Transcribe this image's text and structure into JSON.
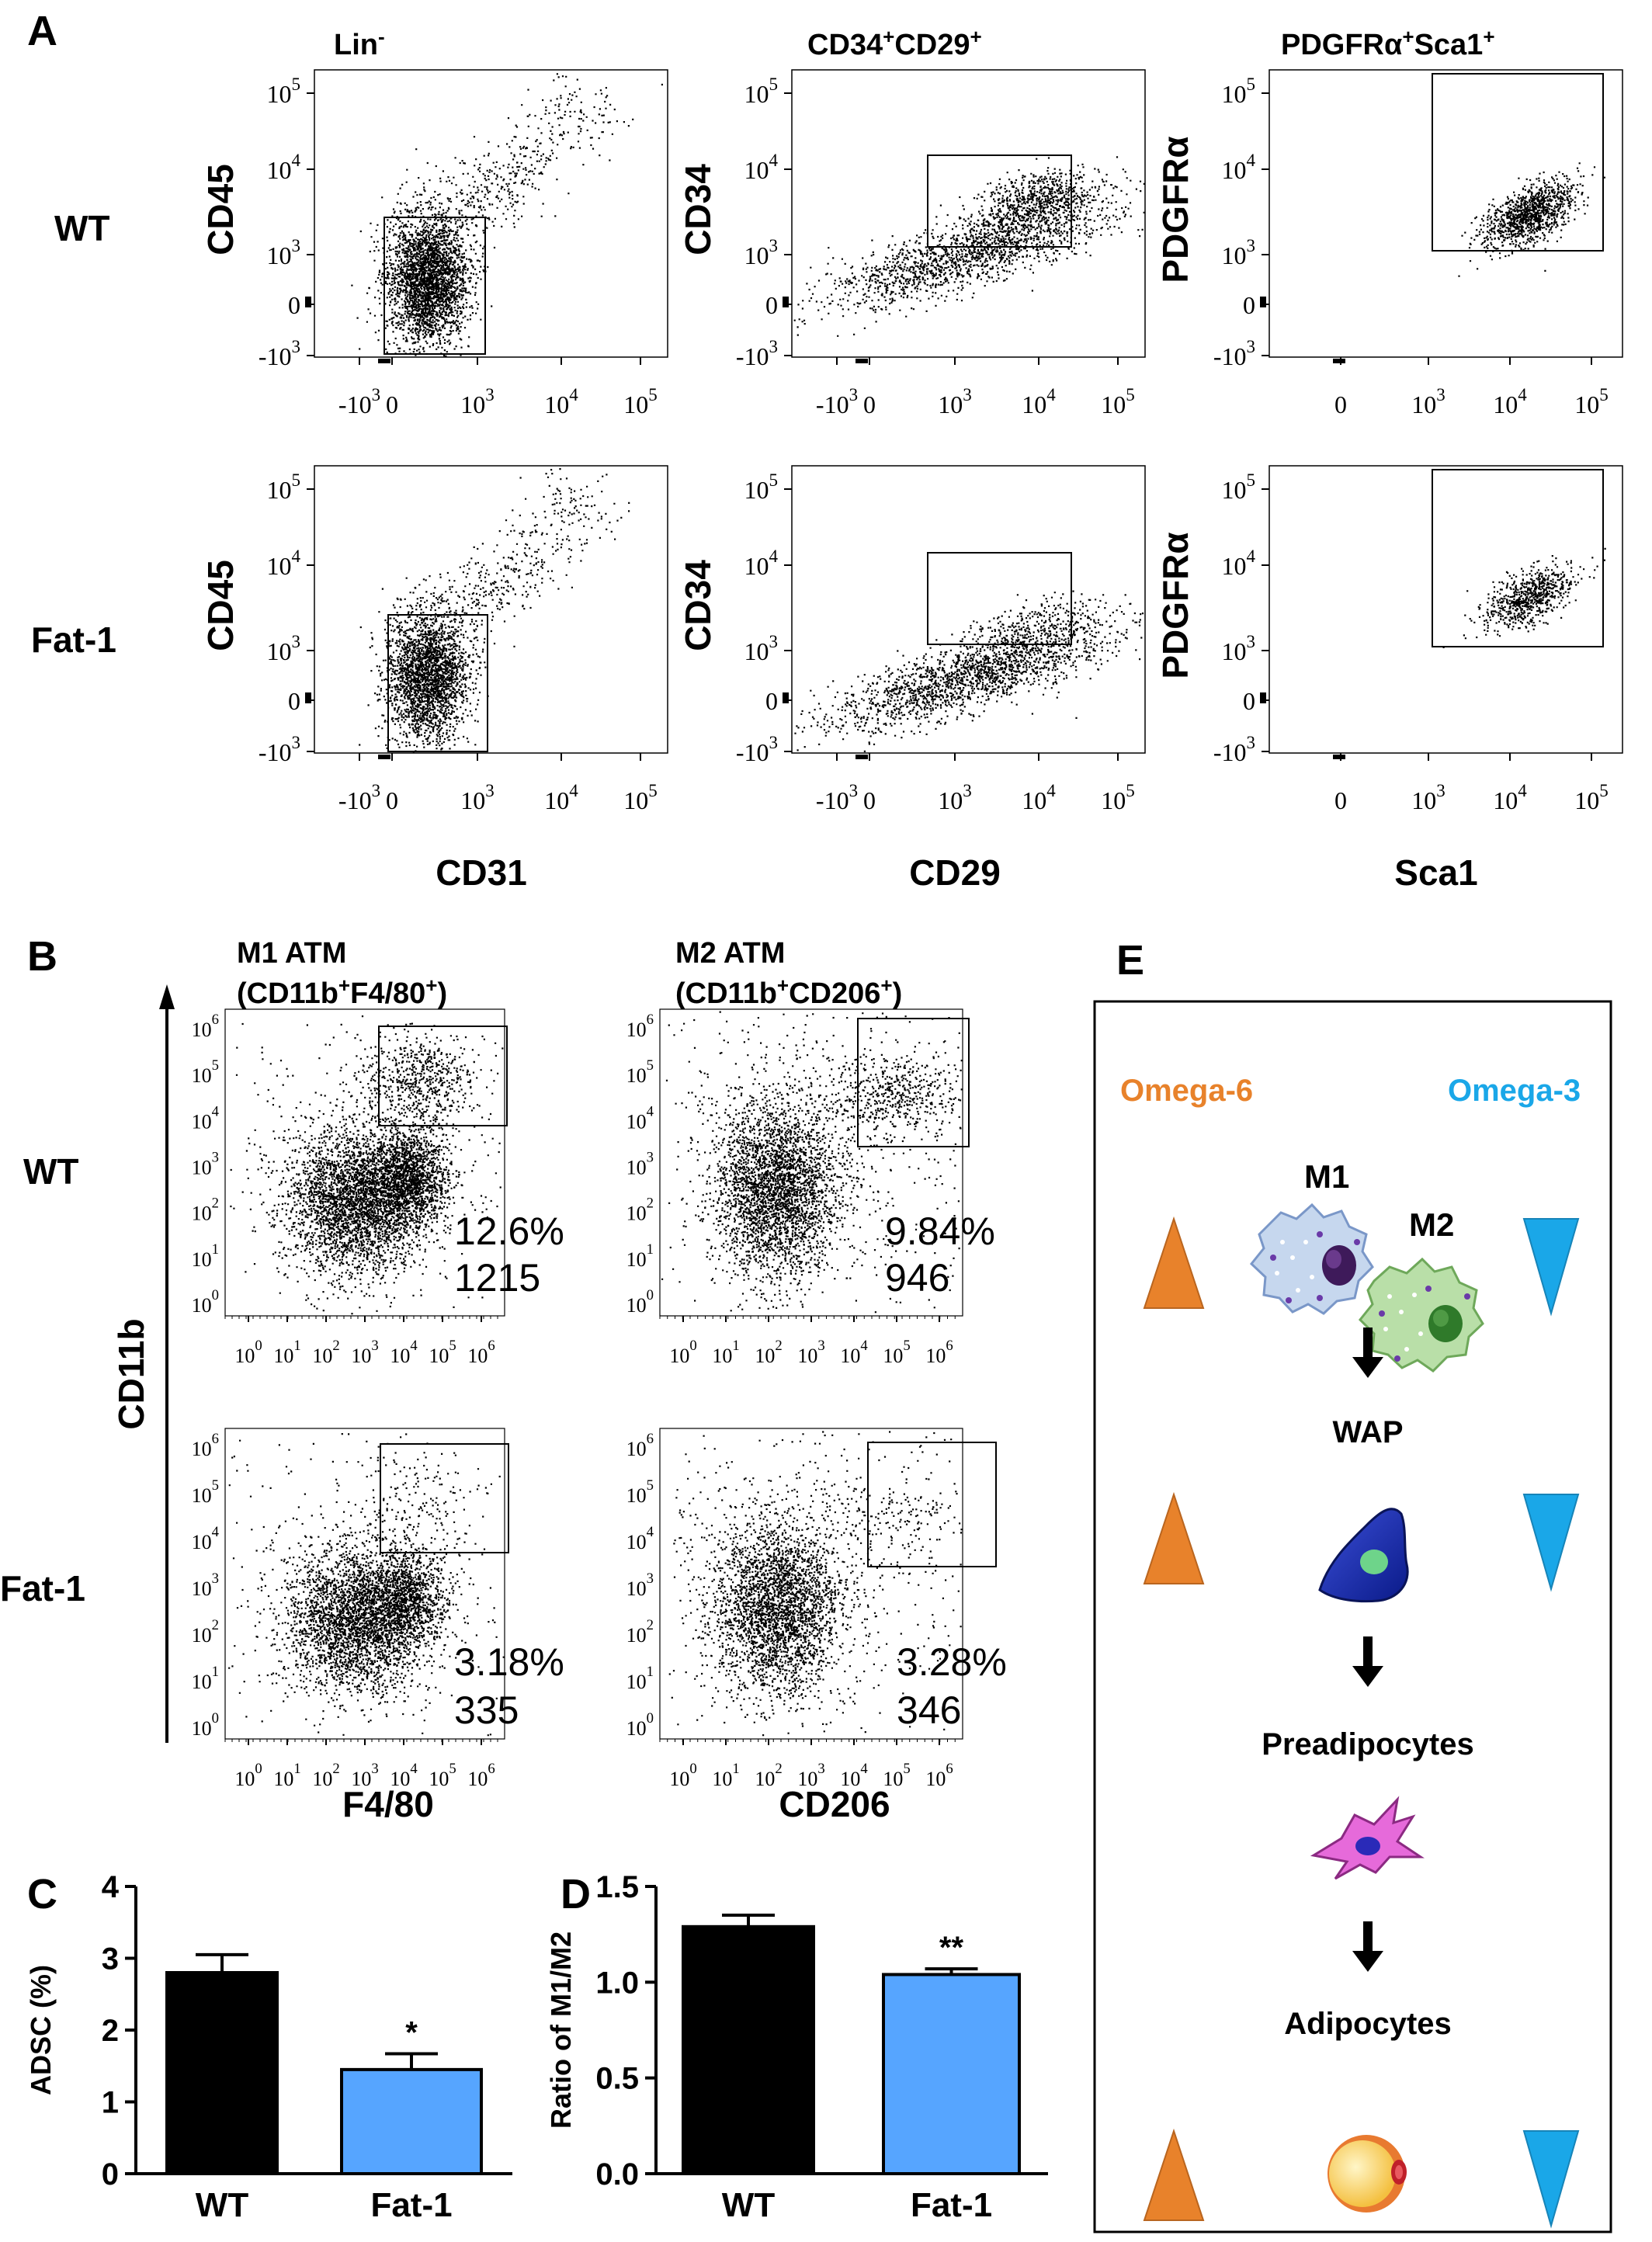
{
  "panel_letters": {
    "a": "A",
    "b": "B",
    "c": "C",
    "d": "D",
    "e": "E"
  },
  "colors": {
    "wt_bar": "#000000",
    "fat1_bar": "#56A5FF",
    "omega6": "#E8822B",
    "omega3": "#1AA7E8",
    "m1_cell": "#C6D7EE",
    "m2_cell": "#B9DFA8"
  },
  "panel_a": {
    "row_labels": [
      "WT",
      "Fat-1"
    ],
    "column_titles": [
      "Lin",
      "CD34+CD29+",
      "PDGFRα+Sca1+"
    ],
    "column_titles_parts": [
      {
        "base": "Lin",
        "sup": "-"
      },
      {
        "base1": "CD34",
        "sup1": "+",
        "base2": "CD29",
        "sup2": "+"
      },
      {
        "base1": "PDGFRα",
        "sup1": "+",
        "base2": "Sca1",
        "sup2": "+"
      }
    ],
    "y_axis_labels": [
      "CD45",
      "CD34",
      "PDGFRα"
    ],
    "x_axis_labels": [
      "CD31",
      "CD29",
      "Sca1"
    ],
    "ticks_xy": [
      {
        "b": "-10",
        "e": "3"
      },
      {
        "b": "0",
        "e": ""
      },
      {
        "b": "10",
        "e": "3"
      },
      {
        "b": "10",
        "e": "4"
      },
      {
        "b": "10",
        "e": "5"
      }
    ]
  },
  "panel_b": {
    "row_labels": [
      "WT",
      "Fat-1"
    ],
    "column_titles": [
      {
        "line1": "M1 ATM",
        "base1": "(CD11b",
        "sup1": "+",
        "base2": "F4/80",
        "sup2": "+",
        "tail": ")"
      },
      {
        "line1": "M2 ATM",
        "base1": "(CD11b",
        "sup1": "+",
        "base2": "CD206",
        "sup2": "+",
        "tail": ")"
      }
    ],
    "y_axis_label": "CD11b",
    "x_axis_labels": [
      "F4/80",
      "CD206"
    ],
    "exponents": [
      "0",
      "1",
      "2",
      "3",
      "4",
      "5",
      "6"
    ],
    "stats": [
      {
        "row": "WT",
        "column": "M1 ATM",
        "percent": "12.6%",
        "count": "1215"
      },
      {
        "row": "WT",
        "column": "M2 ATM",
        "percent": "9.84%",
        "count": "946"
      },
      {
        "row": "Fat-1",
        "column": "M1 ATM",
        "percent": "3.18%",
        "count": "335"
      },
      {
        "row": "Fat-1",
        "column": "M2 ATM",
        "percent": "3.28%",
        "count": "346"
      }
    ]
  },
  "chart_data": [
    {
      "type": "bar",
      "panel": "C",
      "categories": [
        "WT",
        "Fat-1"
      ],
      "values": [
        2.8,
        1.45
      ],
      "errors": [
        0.25,
        0.22
      ],
      "significance": [
        "",
        "*"
      ],
      "ylabel": "ADSC (%)",
      "ylim": [
        0,
        4
      ],
      "yticks": [
        "0",
        "1",
        "2",
        "3",
        "4"
      ]
    },
    {
      "type": "bar",
      "panel": "D",
      "categories": [
        "WT",
        "Fat-1"
      ],
      "values": [
        1.29,
        1.04
      ],
      "errors": [
        0.06,
        0.03
      ],
      "significance": [
        "",
        "**"
      ],
      "ylabel": "Ratio of M1/M2",
      "ylim": [
        0,
        1.5
      ],
      "yticks": [
        "0.0",
        "0.5",
        "1.0",
        "1.5"
      ]
    }
  ],
  "panel_e": {
    "omega6": "Omega-6",
    "omega3": "Omega-3",
    "m1": "M1",
    "m2": "M2",
    "wap": "WAP",
    "preadipocytes": "Preadipocytes",
    "adipocytes": "Adipocytes"
  }
}
